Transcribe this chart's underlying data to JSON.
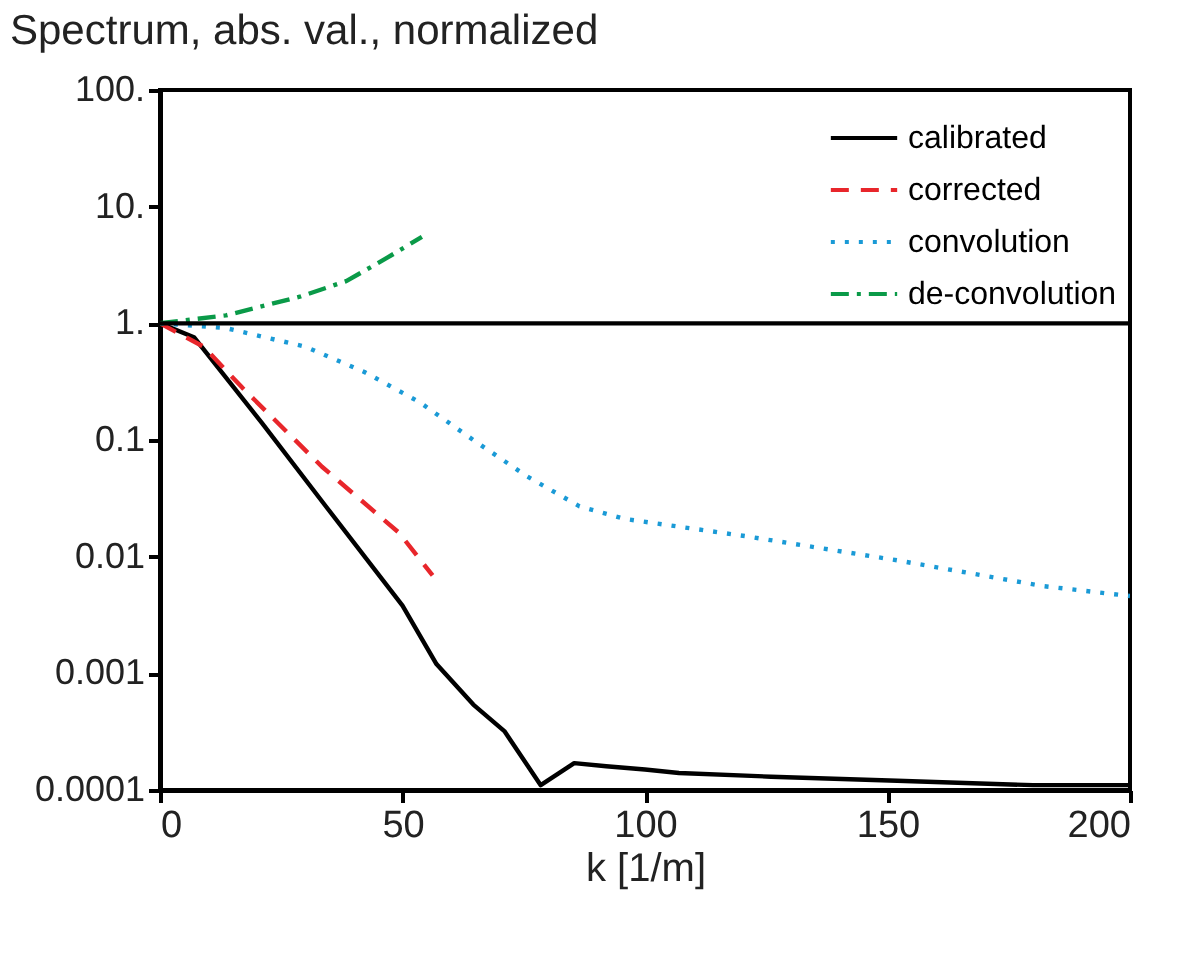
{
  "chart_data": {
    "type": "line",
    "title": "Spectrum, abs. val., normalized",
    "xlabel": "k [1/m]",
    "log": "y",
    "xlim": [
      0,
      200
    ],
    "xticks": [
      0,
      50,
      100,
      150,
      200
    ],
    "ylim": [
      0.0001,
      100
    ],
    "yticks": [
      {
        "value": 100,
        "label": "100."
      },
      {
        "value": 10,
        "label": "10."
      },
      {
        "value": 1,
        "label": "1."
      },
      0.1,
      0.01,
      0.001,
      0.0001
    ],
    "grid": false,
    "legend": "top right",
    "marker": "none",
    "ref_lines": [
      {
        "axis": "y",
        "value": 1,
        "color": "#000000",
        "line_style": "solid"
      }
    ],
    "series": [
      {
        "name": "calibrated",
        "color": "#000000",
        "line_style": "solid",
        "x": [
          0,
          7,
          21,
          34.5,
          50,
          57,
          64.6,
          71,
          78.5,
          85.4,
          92,
          100,
          107,
          126,
          152,
          180,
          197,
          200
        ],
        "values": [
          1,
          0.76,
          0.14,
          0.026,
          0.0038,
          0.0012,
          0.00054,
          0.00032,
          0.00011,
          0.00017,
          0.00016,
          0.00015,
          0.00014,
          0.00013,
          0.00012,
          0.00011,
          0.00011,
          0.00011
        ]
      },
      {
        "name": "corrected",
        "color": "#e8262b",
        "line_style": "dashed",
        "x": [
          0,
          9,
          17,
          33.4,
          49.3,
          56.2
        ],
        "values": [
          1,
          0.63,
          0.28,
          0.059,
          0.016,
          0.0069
        ]
      },
      {
        "name": "convolution",
        "color": "#1a9ad6",
        "line_style": "dotted",
        "x": [
          0,
          13.6,
          30,
          42.3,
          53.6,
          64.6,
          75.6,
          86.5,
          96,
          120.7,
          152,
          182,
          200
        ],
        "values": [
          1,
          0.91,
          0.63,
          0.38,
          0.21,
          0.1,
          0.049,
          0.027,
          0.021,
          0.015,
          0.0093,
          0.0056,
          0.0046
        ]
      },
      {
        "name": "de-convolution",
        "color": "#0a9a48",
        "line_style": "dashdot",
        "x": [
          0,
          13.6,
          29,
          38.4,
          46.6,
          54
        ],
        "values": [
          1,
          1.17,
          1.7,
          2.3,
          3.6,
          5.5
        ]
      }
    ]
  }
}
